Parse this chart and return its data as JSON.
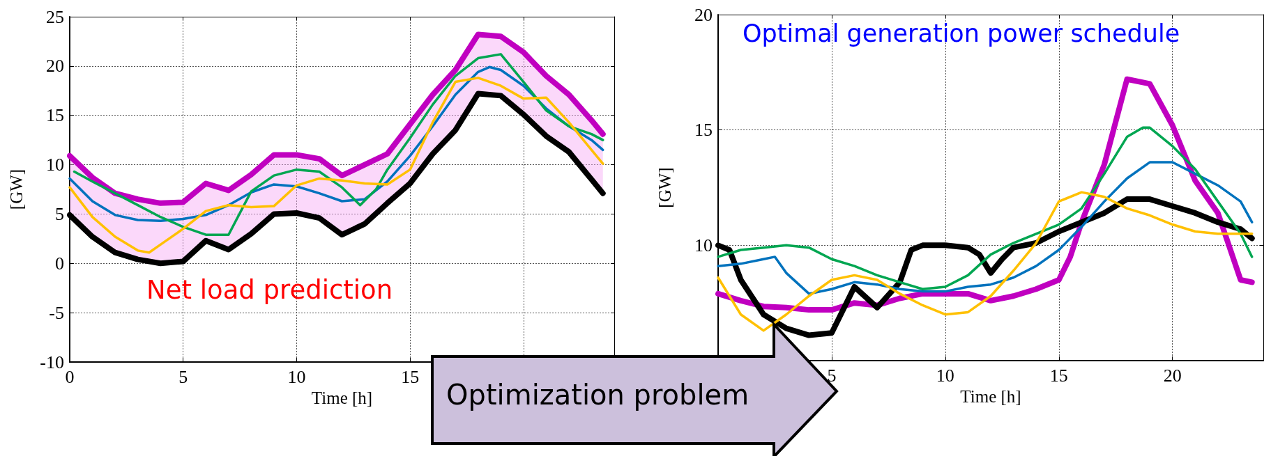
{
  "chart_data": [
    {
      "type": "line",
      "xlabel": "Time [h]",
      "ylabel": "[GW]",
      "xlim": [
        0,
        24
      ],
      "xticks": [
        0,
        5,
        10,
        15,
        {
          "value": 20,
          "label": null
        }
      ],
      "ylim": [
        -10,
        25
      ],
      "yticks": [
        -10,
        -5,
        0,
        5,
        10,
        15,
        20,
        25
      ],
      "grid": true,
      "marker": "none",
      "line_style": "solid",
      "annotations": [
        "Net load prediction",
        "Optimization problem"
      ],
      "series": [
        {
          "color": "#c000c0",
          "x": [
            0,
            1,
            2,
            3,
            4,
            5,
            6,
            7,
            8,
            9,
            10,
            11,
            12,
            13,
            14,
            15,
            16,
            17,
            18,
            19,
            20,
            21,
            22,
            23,
            23.5
          ],
          "values": [
            10.9,
            8.7,
            7.1,
            6.5,
            6.1,
            6.2,
            8.1,
            7.4,
            9.0,
            11.0,
            11.0,
            10.6,
            8.9,
            10.0,
            11.1,
            14.1,
            17.1,
            19.6,
            23.2,
            23.0,
            21.4,
            19.0,
            17.1,
            14.5,
            13.1
          ],
          "lower": [
            4.9,
            2.7,
            1.1,
            0.4,
            0,
            0.2,
            2.3,
            1.4,
            3.0,
            5.0,
            5.1,
            4.6,
            2.9,
            4.0,
            6.1,
            8.1,
            11.1,
            13.5,
            17.2,
            17.0,
            15.1,
            12.9,
            11.3,
            8.5,
            7.1
          ],
          "upper": [
            10.9,
            8.7,
            7.1,
            6.5,
            6.1,
            6.2,
            8.1,
            7.4,
            9.0,
            11.0,
            11.0,
            10.6,
            8.9,
            10.0,
            11.1,
            14.1,
            17.1,
            19.6,
            23.2,
            23.0,
            21.4,
            19.0,
            17.1,
            14.5,
            13.1
          ]
        },
        {
          "color": "#000000",
          "x": [
            0,
            1,
            2,
            3,
            4,
            5,
            6,
            7,
            8,
            9,
            10,
            11,
            12,
            13,
            14,
            15,
            16,
            17,
            18,
            19,
            20,
            21,
            22,
            23,
            23.5
          ],
          "values": [
            4.9,
            2.7,
            1.1,
            0.4,
            0,
            0.2,
            2.3,
            1.4,
            3.0,
            5.0,
            5.1,
            4.6,
            2.9,
            4.0,
            6.1,
            8.1,
            11.1,
            13.5,
            17.2,
            17.0,
            15.1,
            12.9,
            11.3,
            8.5,
            7.1
          ]
        },
        {
          "color": "#0072bd",
          "x": [
            0,
            1,
            2,
            3,
            4,
            5,
            6,
            7,
            8,
            9,
            10,
            11,
            12,
            13,
            14,
            15,
            16,
            17,
            18,
            18.5,
            19,
            20,
            21,
            22,
            23,
            23.5
          ],
          "values": [
            8.6,
            6.3,
            4.9,
            4.4,
            4.3,
            4.5,
            4.9,
            5.9,
            7.2,
            8.0,
            7.8,
            7.1,
            6.3,
            6.5,
            8.3,
            10.9,
            13.9,
            17.1,
            19.4,
            19.9,
            19.6,
            18.0,
            15.7,
            13.9,
            12.5,
            11.5
          ]
        },
        {
          "color": "#00a651",
          "x": [
            0.2,
            1,
            2,
            3,
            4,
            5,
            6,
            7,
            8,
            9,
            10,
            11,
            12,
            12.8,
            13.5,
            14,
            15,
            16,
            17,
            18,
            19,
            20,
            21,
            22,
            23,
            23.5
          ],
          "values": [
            9.3,
            8.3,
            7.1,
            5.9,
            4.7,
            3.7,
            2.9,
            2.9,
            7.3,
            8.9,
            9.5,
            9.3,
            7.7,
            5.9,
            7.5,
            9.5,
            12.7,
            16.1,
            19.0,
            20.8,
            21.2,
            18.4,
            15.5,
            13.9,
            13.1,
            12.5
          ]
        },
        {
          "color": "#ffc000",
          "x": [
            0,
            1,
            2,
            3,
            3.5,
            4,
            5,
            6,
            7,
            8,
            9,
            10,
            11,
            12,
            13,
            14,
            15,
            16,
            17,
            18,
            19,
            20,
            21,
            22,
            23,
            23.5
          ],
          "values": [
            7.7,
            4.7,
            2.7,
            1.3,
            1.1,
            1.9,
            3.5,
            5.3,
            5.9,
            5.7,
            5.8,
            7.9,
            8.6,
            8.4,
            8.1,
            8.0,
            9.5,
            14.3,
            18.4,
            18.8,
            18.0,
            16.7,
            16.8,
            14.3,
            11.5,
            10.1
          ]
        }
      ]
    },
    {
      "type": "line",
      "xlabel": "Time [h]",
      "ylabel": "[GW]",
      "xlim": [
        0,
        24
      ],
      "xticks": [
        {
          "value": 0,
          "label": null
        },
        5,
        10,
        15,
        20
      ],
      "ylim": [
        5,
        20
      ],
      "yticks": [
        {
          "value": 5,
          "label": null
        },
        10,
        15,
        20
      ],
      "grid": true,
      "marker": "none",
      "line_style": "solid",
      "annotations": [
        "Optimal generation power schedule"
      ],
      "series": [
        {
          "color": "#c000c0",
          "x": [
            0,
            1,
            2,
            3,
            4,
            5,
            6,
            7,
            8,
            9,
            10,
            11,
            12,
            13,
            14,
            15,
            15.5,
            16,
            17,
            18,
            19,
            20,
            21,
            22,
            23,
            23.5
          ],
          "values": [
            7.9,
            7.6,
            7.35,
            7.3,
            7.2,
            7.2,
            7.5,
            7.4,
            7.7,
            7.9,
            7.9,
            7.9,
            7.6,
            7.8,
            8.1,
            8.5,
            9.5,
            11.0,
            13.5,
            17.2,
            17.0,
            15.2,
            12.8,
            11.4,
            8.5,
            8.4
          ]
        },
        {
          "color": "#000000",
          "x": [
            0,
            0.5,
            1,
            2,
            3,
            4,
            5,
            6,
            7,
            8,
            8.5,
            9,
            10,
            11,
            11.5,
            12,
            12.5,
            13,
            14,
            15,
            16,
            17,
            18,
            19,
            20,
            21,
            22,
            23,
            23.5
          ],
          "values": [
            10.0,
            9.8,
            8.5,
            7.0,
            6.4,
            6.1,
            6.2,
            8.2,
            7.3,
            8.4,
            9.8,
            10.0,
            10.0,
            9.9,
            9.6,
            8.8,
            9.4,
            9.9,
            10.1,
            10.6,
            11.0,
            11.4,
            12.0,
            12.0,
            11.7,
            11.4,
            11.0,
            10.7,
            10.3
          ]
        },
        {
          "color": "#0072bd",
          "x": [
            0,
            1,
            2,
            2.5,
            3,
            4,
            5,
            6,
            7,
            8,
            9,
            10,
            11,
            12,
            13,
            14,
            15,
            16,
            17,
            18,
            19,
            20,
            21,
            22,
            23,
            23.5
          ],
          "values": [
            9.1,
            9.2,
            9.4,
            9.5,
            8.8,
            7.9,
            8.1,
            8.4,
            8.3,
            8.1,
            8.0,
            8.0,
            8.2,
            8.3,
            8.6,
            9.1,
            9.8,
            10.8,
            11.9,
            12.9,
            13.6,
            13.6,
            13.1,
            12.6,
            11.9,
            11.0
          ]
        },
        {
          "color": "#00a651",
          "x": [
            0,
            1,
            2,
            3,
            4,
            5,
            6,
            7,
            8,
            9,
            10,
            11,
            12,
            13,
            14,
            15,
            16,
            17,
            18,
            18.7,
            19,
            20,
            21,
            22,
            23,
            23.5
          ],
          "values": [
            9.5,
            9.8,
            9.9,
            10.0,
            9.9,
            9.4,
            9.1,
            8.7,
            8.4,
            8.1,
            8.2,
            8.7,
            9.6,
            10.1,
            10.5,
            10.9,
            11.6,
            13.1,
            14.7,
            15.1,
            15.1,
            14.3,
            13.3,
            11.9,
            10.5,
            9.5
          ]
        },
        {
          "color": "#ffc000",
          "x": [
            0,
            1,
            2,
            3,
            4,
            5,
            6,
            7,
            8,
            9,
            10,
            11,
            12,
            13,
            14,
            15,
            16,
            17,
            18,
            19,
            20,
            21,
            22,
            23,
            23.5
          ],
          "values": [
            8.6,
            7.0,
            6.3,
            7.0,
            7.8,
            8.5,
            8.7,
            8.5,
            7.9,
            7.4,
            7.0,
            7.1,
            7.8,
            8.9,
            10.1,
            11.9,
            12.3,
            12.1,
            11.6,
            11.3,
            10.9,
            10.6,
            10.5,
            10.5,
            10.5
          ]
        }
      ]
    }
  ]
}
